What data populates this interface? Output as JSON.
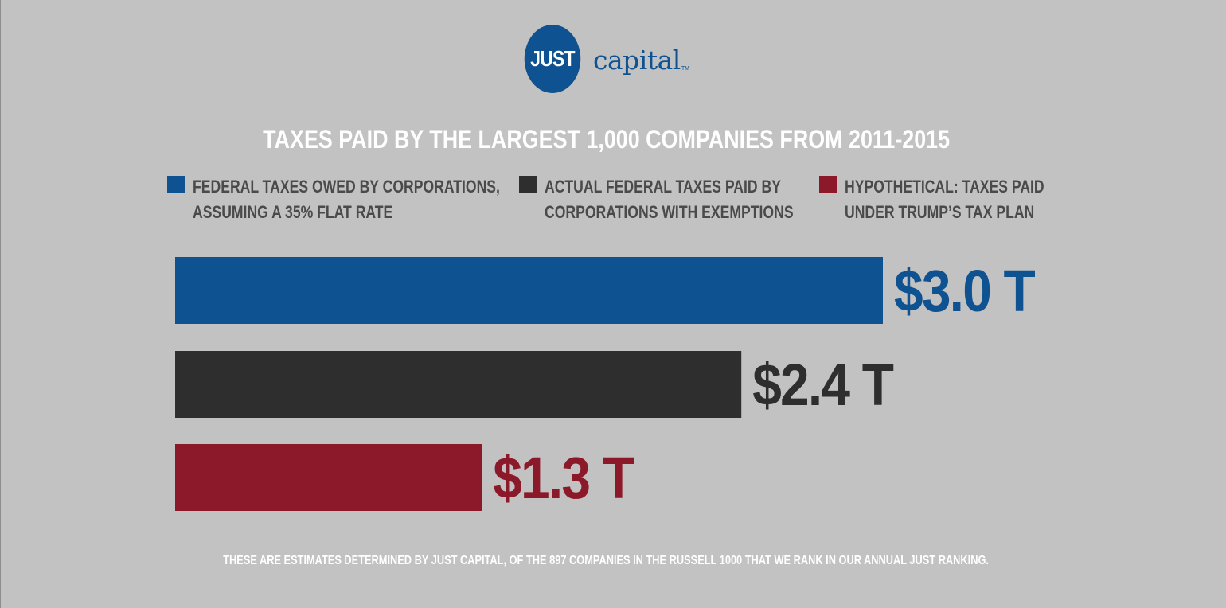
{
  "logo": {
    "mark_text": "JUST",
    "word_text": "capital",
    "tm": "TM"
  },
  "colors": {
    "background": "#c2c2c2",
    "blue": "#0f5291",
    "dark": "#2e2e2e",
    "red": "#8b1929",
    "legend_text": "#4a4a4a"
  },
  "chart_data": {
    "type": "bar",
    "orientation": "horizontal",
    "title": "TAXES PAID BY THE LARGEST 1,000 COMPANIES FROM 2011-2015",
    "legend": [
      {
        "line1": "FEDERAL TAXES OWED BY CORPORATIONS,",
        "line2": "ASSUMING A 35% FLAT RATE",
        "color": "#0f5291"
      },
      {
        "line1": "ACTUAL FEDERAL TAXES PAID BY",
        "line2": "CORPORATIONS WITH EXEMPTIONS",
        "color": "#2e2e2e"
      },
      {
        "line1": "HYPOTHETICAL: TAXES PAID",
        "line2": "UNDER TRUMP’S TAX PLAN",
        "color": "#8b1929"
      }
    ],
    "values": [
      3.0,
      2.4,
      1.3
    ],
    "labels": [
      "$3.0 T",
      "$2.4 T",
      "$1.3 T"
    ],
    "colors": [
      "#0f5291",
      "#2e2e2e",
      "#8b1929"
    ],
    "unit": "T",
    "xlim": [
      0,
      3.0
    ],
    "grid": false,
    "legend_position": "top"
  },
  "footnote": "THESE ARE ESTIMATES DETERMINED BY JUST CAPITAL, OF THE 897 COMPANIES IN THE RUSSELL 1000 THAT WE RANK IN OUR ANNUAL JUST RANKING."
}
